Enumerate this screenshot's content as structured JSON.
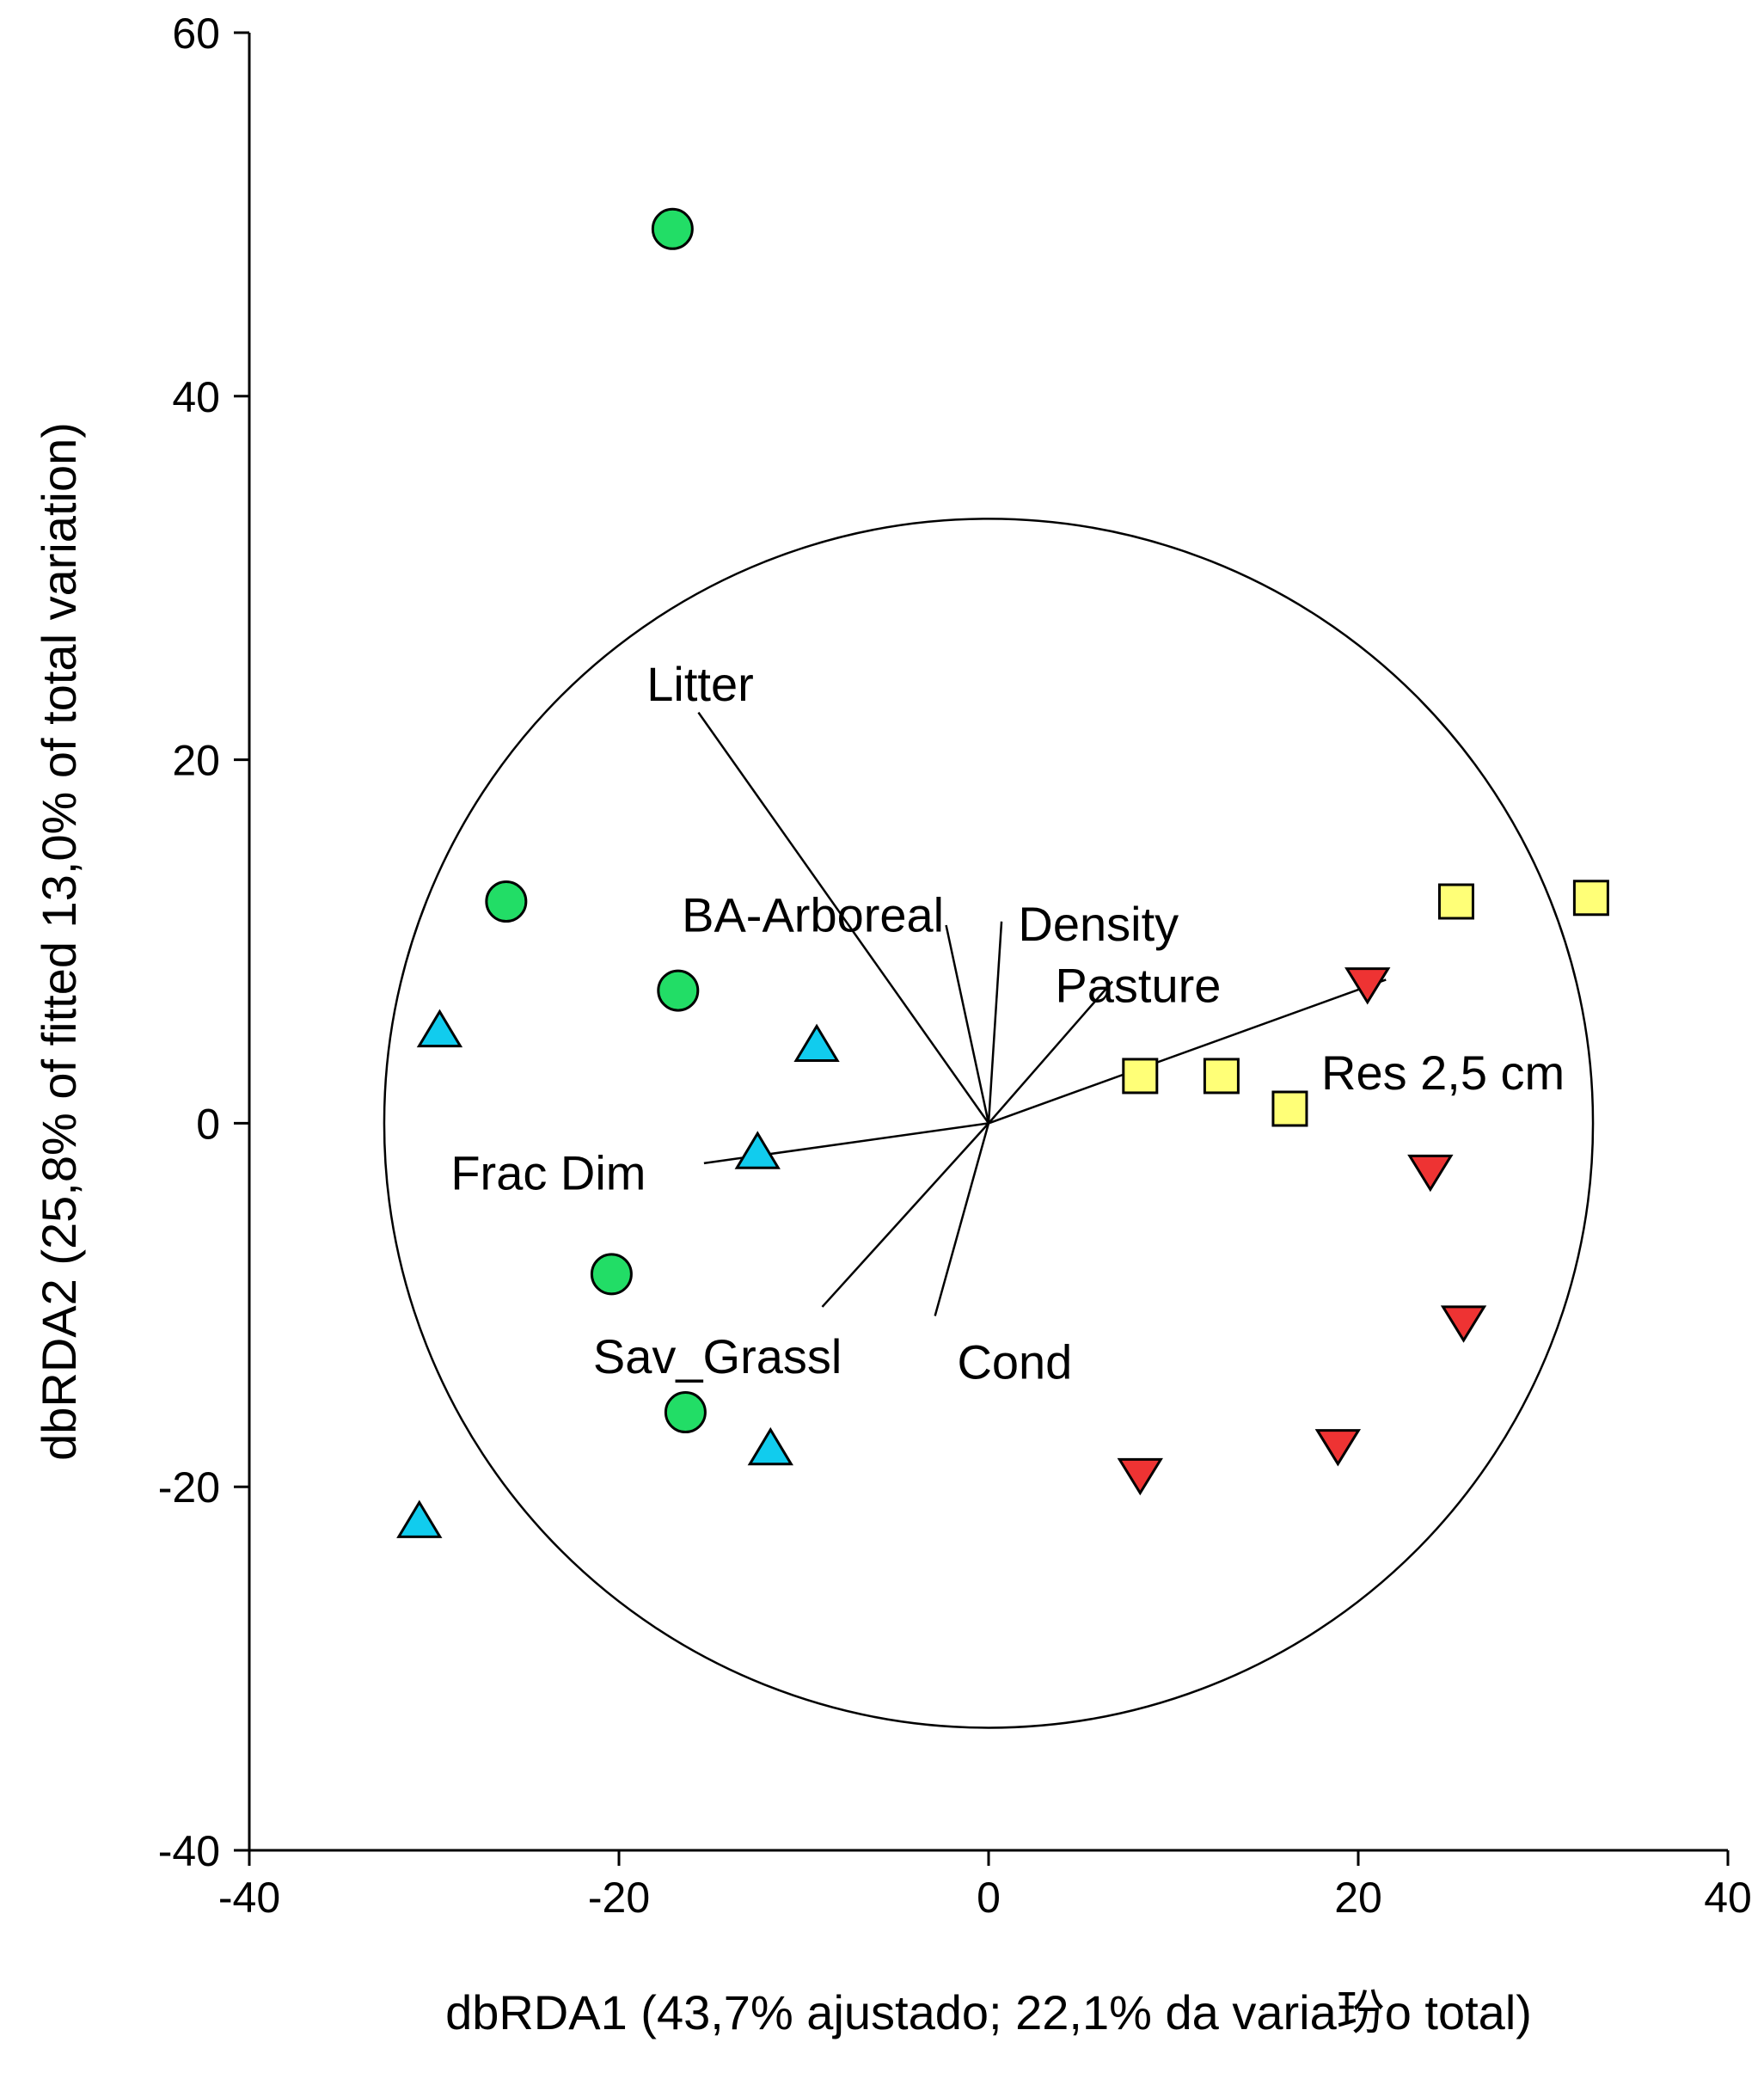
{
  "chart_data": {
    "type": "scatter",
    "xlabel": "dbRDA1 (43,7% ajustado; 22,1% da varia玢o total)",
    "ylabel": "dbRDA2 (25,8% of fitted 13,0% of total variation)",
    "xlim": [
      -40,
      40
    ],
    "ylim": [
      -40,
      60
    ],
    "x_ticks": [
      -40,
      -20,
      0,
      20,
      40
    ],
    "y_ticks": [
      -40,
      -20,
      0,
      20,
      40,
      60
    ],
    "x_tick_labels": [
      "-40",
      "-20",
      "0",
      "20",
      "40"
    ],
    "y_tick_labels": [
      "-40",
      "-20",
      "0",
      "20",
      "40",
      "60"
    ],
    "grid": false,
    "legend": "none",
    "colors": {
      "green": "#22dd66",
      "cyan": "#11ccee",
      "yellow": "#ffff77",
      "red": "#ee3333",
      "outline": "#000000"
    },
    "correlation_circle": {
      "center": [
        0,
        0
      ],
      "radius": 32.7
    },
    "series": [
      {
        "name": "circles",
        "marker": "circle",
        "color": "#22dd66",
        "points": [
          [
            -17.1,
            49.2
          ],
          [
            -26.1,
            12.2
          ],
          [
            -16.8,
            7.3
          ],
          [
            -20.4,
            -8.3
          ],
          [
            -16.4,
            -15.9
          ]
        ]
      },
      {
        "name": "triangles-up",
        "marker": "triangle-up",
        "color": "#11ccee",
        "points": [
          [
            -29.7,
            5.1
          ],
          [
            -9.3,
            4.3
          ],
          [
            -12.5,
            -1.6
          ],
          [
            -11.8,
            -17.9
          ],
          [
            -30.8,
            -21.9
          ]
        ]
      },
      {
        "name": "squares",
        "marker": "square",
        "color": "#ffff77",
        "points": [
          [
            25.3,
            12.2
          ],
          [
            32.6,
            12.4
          ],
          [
            8.2,
            2.6
          ],
          [
            12.6,
            2.6
          ],
          [
            16.3,
            0.8
          ]
        ]
      },
      {
        "name": "triangles-down",
        "marker": "triangle-down",
        "color": "#ee3333",
        "points": [
          [
            20.5,
            7.7
          ],
          [
            23.9,
            -2.6
          ],
          [
            25.7,
            -10.9
          ],
          [
            18.9,
            -17.7
          ],
          [
            8.2,
            -19.3
          ]
        ]
      }
    ],
    "vectors": [
      {
        "label": "Litter",
        "end": [
          -15.7,
          22.6
        ],
        "label_at": [
          -18.5,
          24.2
        ],
        "anchor": "start"
      },
      {
        "label": "BA-Arboreal",
        "end": [
          -2.3,
          10.9
        ],
        "label_at": [
          -16.6,
          11.5
        ],
        "anchor": "start"
      },
      {
        "label": "Density",
        "end": [
          0.7,
          11.1
        ],
        "label_at": [
          1.6,
          11.0
        ],
        "anchor": "start"
      },
      {
        "label": "Pasture",
        "end": [
          6.7,
          7.8
        ],
        "label_at": [
          3.6,
          7.6
        ],
        "anchor": "start"
      },
      {
        "label": "Res 2,5 cm",
        "end": [
          21.5,
          7.9
        ],
        "label_at": [
          18.0,
          2.8
        ],
        "anchor": "start"
      },
      {
        "label": "Frac Dim",
        "end": [
          -15.4,
          -2.2
        ],
        "label_at": [
          -29.1,
          -2.7
        ],
        "anchor": "start"
      },
      {
        "label": "Sav_Grassl",
        "end": [
          -9.0,
          -10.1
        ],
        "label_at": [
          -21.4,
          -12.8
        ],
        "anchor": "start"
      },
      {
        "label": "Cond",
        "end": [
          -2.9,
          -10.6
        ],
        "label_at": [
          -1.7,
          -13.1
        ],
        "anchor": "start"
      }
    ]
  }
}
